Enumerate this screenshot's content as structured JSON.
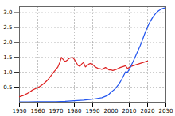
{
  "chart_data": {
    "type": "line",
    "series": [
      {
        "color": "#dd2222",
        "x": [
          1950,
          1951,
          1952,
          1953,
          1954,
          1955,
          1956,
          1957,
          1958,
          1959,
          1960,
          1961,
          1962,
          1963,
          1964,
          1965,
          1966,
          1967,
          1968,
          1969,
          1970,
          1971,
          1972,
          1973,
          1974,
          1975,
          1976,
          1977,
          1978,
          1979,
          1980,
          1981,
          1982,
          1983,
          1984,
          1985,
          1986,
          1987,
          1988,
          1989,
          1990,
          1991,
          1992,
          1993,
          1994,
          1995,
          1996,
          1997,
          1998,
          1999,
          2000,
          2001,
          2002,
          2003,
          2004,
          2005,
          2006,
          2007,
          2008,
          2009,
          2010,
          2011,
          2012,
          2013,
          2014,
          2015,
          2016,
          2017,
          2018,
          2019,
          2020
        ],
        "values": [
          0.18,
          0.2,
          0.22,
          0.25,
          0.28,
          0.32,
          0.36,
          0.4,
          0.43,
          0.46,
          0.49,
          0.52,
          0.56,
          0.61,
          0.66,
          0.72,
          0.79,
          0.87,
          0.95,
          1.03,
          1.1,
          1.18,
          1.33,
          1.5,
          1.42,
          1.36,
          1.4,
          1.46,
          1.48,
          1.5,
          1.43,
          1.33,
          1.23,
          1.2,
          1.28,
          1.33,
          1.18,
          1.23,
          1.28,
          1.3,
          1.26,
          1.2,
          1.16,
          1.13,
          1.12,
          1.1,
          1.13,
          1.16,
          1.13,
          1.08,
          1.08,
          1.06,
          1.08,
          1.1,
          1.13,
          1.16,
          1.18,
          1.2,
          1.22,
          1.13,
          1.16,
          1.2,
          1.22,
          1.24,
          1.26,
          1.28,
          1.3,
          1.32,
          1.34,
          1.36,
          1.38
        ]
      },
      {
        "color": "#2255ee",
        "x": [
          1950,
          1955,
          1960,
          1965,
          1970,
          1975,
          1980,
          1985,
          1990,
          1995,
          1998,
          1999,
          2000,
          2001,
          2002,
          2003,
          2004,
          2005,
          2006,
          2007,
          2008,
          2009,
          2010,
          2011,
          2012,
          2013,
          2014,
          2015,
          2016,
          2017,
          2018,
          2019,
          2020,
          2021,
          2022,
          2023,
          2024,
          2025,
          2026,
          2027,
          2028,
          2029,
          2030
        ],
        "values": [
          0.01,
          0.01,
          0.02,
          0.02,
          0.02,
          0.03,
          0.05,
          0.07,
          0.1,
          0.15,
          0.22,
          0.27,
          0.33,
          0.38,
          0.43,
          0.5,
          0.58,
          0.67,
          0.78,
          0.9,
          1.02,
          1.0,
          1.1,
          1.22,
          1.35,
          1.48,
          1.62,
          1.76,
          1.9,
          2.05,
          2.22,
          2.38,
          2.52,
          2.65,
          2.76,
          2.86,
          2.94,
          3.01,
          3.06,
          3.1,
          3.13,
          3.15,
          3.17
        ]
      }
    ],
    "xlim": [
      1950,
      2030
    ],
    "xticks": [
      1950,
      1960,
      1970,
      1980,
      1990,
      2000,
      2010,
      2020,
      2030
    ],
    "ylim": [
      0,
      3.2
    ],
    "yticks": [
      0.5,
      {
        "value": 1.0,
        "label": "1.0"
      },
      1.5,
      {
        "value": 2.0,
        "label": "2.0"
      },
      2.5,
      {
        "value": 3.0,
        "label": "3.0"
      }
    ],
    "grid": true
  }
}
